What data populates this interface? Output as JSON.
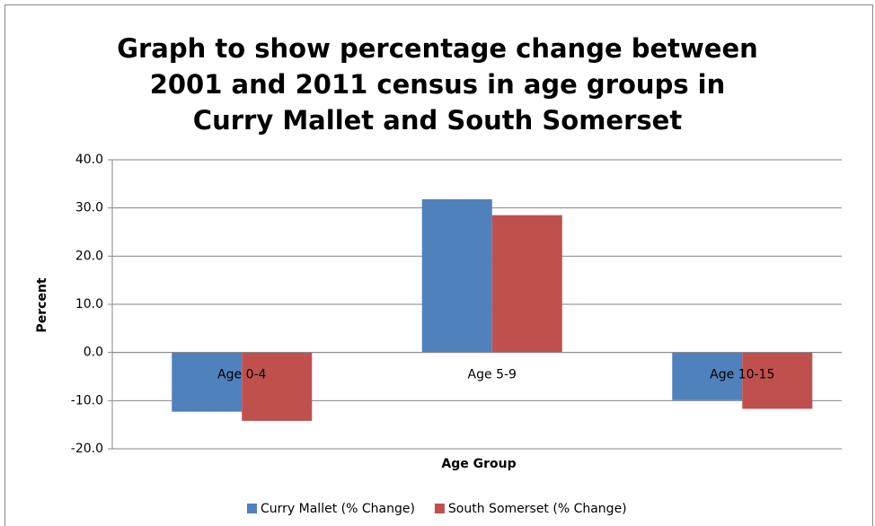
{
  "chart_data": {
    "type": "bar",
    "title": "Graph to show percentage change between 2001 and 2011 census in age groups in Curry Mallet and South Somerset",
    "x_label": "Age Group",
    "y_label": "Percent",
    "categories": [
      "Age 0-4",
      "Age 5-9",
      "Age 10-15"
    ],
    "series": [
      {
        "name": "Curry Mallet (% Change)",
        "color": "#4f81bd",
        "values": [
          -12.3,
          31.8,
          -9.9
        ]
      },
      {
        "name": "South Somerset (% Change)",
        "color": "#c0504d",
        "values": [
          -14.2,
          28.5,
          -11.7
        ]
      }
    ],
    "ylim": [
      -20,
      40
    ],
    "yticks": [
      {
        "value": -20,
        "label": "-20.0"
      },
      {
        "value": -10,
        "label": "-10.0"
      },
      {
        "value": 0,
        "label": "0.0"
      },
      {
        "value": 10,
        "label": "10.0"
      },
      {
        "value": 20,
        "label": "20.0"
      },
      {
        "value": 30,
        "label": "30.0"
      },
      {
        "value": 40,
        "label": "40.0"
      }
    ],
    "grid": true,
    "legend": "bottom"
  }
}
